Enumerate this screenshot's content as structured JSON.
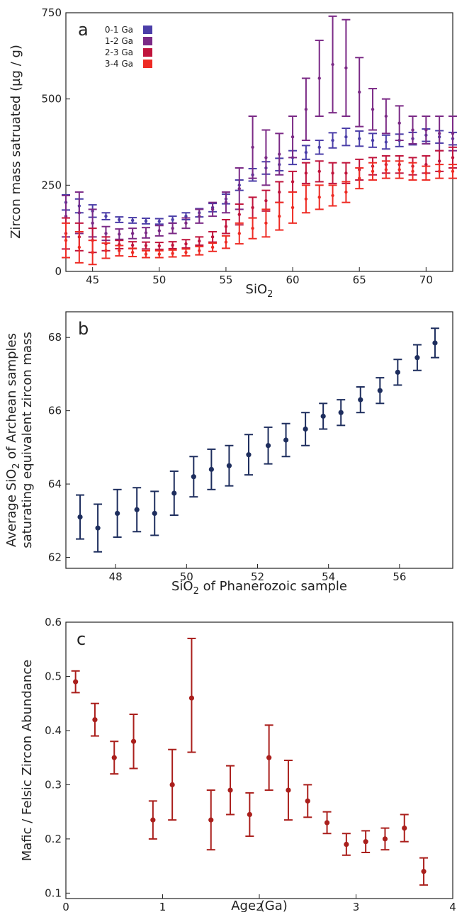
{
  "chart_data": [
    {
      "type": "scatter",
      "panel_label": "a",
      "xlabel": "SiO",
      "xlabel_sub": "2",
      "ylabel": "Zircon mass satruated (µg / g)",
      "xlim": [
        43,
        72
      ],
      "ylim": [
        0,
        750
      ],
      "xticks": [
        "45",
        "50",
        "55",
        "60",
        "65",
        "70"
      ],
      "xtick_values": [
        45,
        50,
        55,
        60,
        65,
        70
      ],
      "yticks": [
        "0",
        "250",
        "500",
        "750"
      ],
      "ytick_values": [
        0,
        250,
        500,
        750
      ],
      "legend_position": "top-left",
      "series": [
        {
          "name": "0-1 Ga",
          "color": "#4b3ea8",
          "x": [
            43,
            44,
            45,
            46,
            47,
            48,
            49,
            50,
            51,
            52,
            53,
            54,
            55,
            56,
            57,
            58,
            59,
            60,
            61,
            62,
            63,
            64,
            65,
            66,
            67,
            68,
            69,
            70,
            71,
            72
          ],
          "y": [
            200,
            190,
            175,
            160,
            150,
            148,
            146,
            145,
            150,
            160,
            170,
            185,
            210,
            250,
            280,
            300,
            310,
            330,
            345,
            360,
            380,
            390,
            385,
            380,
            375,
            380,
            385,
            395,
            390,
            385
          ],
          "err": [
            22,
            20,
            18,
            10,
            8,
            8,
            8,
            8,
            10,
            10,
            12,
            12,
            14,
            15,
            18,
            18,
            18,
            20,
            20,
            20,
            22,
            25,
            22,
            20,
            20,
            18,
            18,
            18,
            18,
            18
          ]
        },
        {
          "name": "1-2 Ga",
          "color": "#7b2a86",
          "x": [
            43,
            44,
            45,
            46,
            47,
            48,
            49,
            50,
            51,
            52,
            53,
            54,
            55,
            56,
            57,
            58,
            59,
            60,
            61,
            62,
            63,
            64,
            65,
            66,
            67,
            68,
            69,
            70,
            71,
            72
          ],
          "y": [
            160,
            170,
            140,
            110,
            108,
            110,
            112,
            118,
            125,
            140,
            160,
            180,
            200,
            240,
            360,
            330,
            340,
            390,
            470,
            560,
            600,
            590,
            520,
            470,
            450,
            430,
            410,
            410,
            400,
            400
          ],
          "err": [
            60,
            60,
            40,
            20,
            15,
            15,
            15,
            15,
            15,
            15,
            20,
            20,
            30,
            60,
            90,
            80,
            60,
            60,
            90,
            110,
            140,
            140,
            100,
            60,
            50,
            50,
            40,
            40,
            50,
            50
          ]
        },
        {
          "name": "2-3 Ga",
          "color": "#c0143c",
          "x": [
            43,
            44,
            45,
            46,
            47,
            48,
            49,
            50,
            51,
            52,
            53,
            54,
            55,
            56,
            57,
            58,
            59,
            60,
            61,
            62,
            63,
            64,
            65,
            66,
            67,
            68,
            69,
            70,
            71,
            72
          ],
          "y": [
            110,
            100,
            90,
            80,
            78,
            76,
            75,
            74,
            76,
            80,
            88,
            100,
            130,
            165,
            185,
            205,
            230,
            260,
            285,
            290,
            285,
            285,
            295,
            305,
            310,
            310,
            305,
            310,
            320,
            330
          ],
          "err": [
            45,
            40,
            35,
            20,
            12,
            10,
            10,
            10,
            10,
            12,
            12,
            15,
            20,
            30,
            30,
            30,
            30,
            30,
            30,
            30,
            30,
            30,
            30,
            25,
            25,
            25,
            25,
            25,
            30,
            30
          ]
        },
        {
          "name": "3-4 Ga",
          "color": "#ee2b24",
          "x": [
            43,
            44,
            45,
            46,
            47,
            48,
            49,
            50,
            51,
            52,
            53,
            54,
            55,
            56,
            57,
            58,
            59,
            60,
            61,
            62,
            63,
            64,
            65,
            66,
            67,
            68,
            69,
            70,
            71,
            72
          ],
          "y": [
            90,
            70,
            55,
            60,
            60,
            55,
            50,
            50,
            52,
            55,
            60,
            70,
            85,
            110,
            125,
            140,
            160,
            185,
            210,
            215,
            220,
            230,
            270,
            290,
            295,
            295,
            290,
            285,
            290,
            290
          ],
          "err": [
            50,
            45,
            35,
            22,
            15,
            12,
            10,
            10,
            10,
            10,
            12,
            12,
            18,
            30,
            30,
            40,
            40,
            45,
            40,
            35,
            30,
            30,
            30,
            25,
            25,
            25,
            25,
            20,
            20,
            20
          ]
        }
      ]
    },
    {
      "type": "scatter",
      "panel_label": "b",
      "xlabel": "SiO",
      "xlabel_sub": "2",
      "xlabel_rest": " of Phanerozoic sample",
      "ylabel_line1": "Average SiO",
      "ylabel_sub": "2",
      "ylabel_line1_rest": " of Archean samples",
      "ylabel_line2": "saturating equivalent zircon mass",
      "xlim": [
        46.6,
        57.5
      ],
      "ylim": [
        61.7,
        68.7
      ],
      "xticks": [
        "48",
        "50",
        "52",
        "54",
        "56"
      ],
      "xtick_values": [
        48,
        50,
        52,
        54,
        56
      ],
      "yticks": [
        "62",
        "64",
        "66",
        "68"
      ],
      "ytick_values": [
        62,
        64,
        66,
        68
      ],
      "series": [
        {
          "color": "#1e2e5e",
          "x": [
            47.0,
            47.5,
            48.05,
            48.6,
            49.1,
            49.65,
            50.2,
            50.7,
            51.2,
            51.75,
            52.3,
            52.8,
            53.35,
            53.85,
            54.35,
            54.9,
            55.45,
            55.95,
            56.5,
            57.0
          ],
          "y": [
            63.1,
            62.8,
            63.2,
            63.3,
            63.2,
            63.75,
            64.2,
            64.4,
            64.5,
            64.8,
            65.05,
            65.2,
            65.5,
            65.85,
            65.95,
            66.3,
            66.55,
            67.05,
            67.45,
            67.85
          ],
          "err": [
            0.6,
            0.65,
            0.65,
            0.6,
            0.6,
            0.6,
            0.55,
            0.55,
            0.55,
            0.55,
            0.5,
            0.45,
            0.45,
            0.35,
            0.35,
            0.35,
            0.35,
            0.35,
            0.35,
            0.4
          ]
        }
      ]
    },
    {
      "type": "scatter",
      "panel_label": "c",
      "xlabel": "Age (Ga)",
      "ylabel": "Mafic / Felsic Zircon Abundance",
      "xlim": [
        0,
        4
      ],
      "ylim": [
        0.09,
        0.6
      ],
      "xticks": [
        "0",
        "1",
        "2",
        "3",
        "4"
      ],
      "xtick_values": [
        0,
        1,
        2,
        3,
        4
      ],
      "yticks": [
        "0.1",
        "0.2",
        "0.3",
        "0.4",
        "0.5",
        "0.6"
      ],
      "ytick_values": [
        0.1,
        0.2,
        0.3,
        0.4,
        0.5,
        0.6
      ],
      "series": [
        {
          "color": "#aa1f1c",
          "x": [
            0.1,
            0.3,
            0.5,
            0.7,
            0.9,
            1.1,
            1.3,
            1.5,
            1.7,
            1.9,
            2.1,
            2.3,
            2.5,
            2.7,
            2.9,
            3.1,
            3.3,
            3.5,
            3.7
          ],
          "y": [
            0.49,
            0.42,
            0.35,
            0.38,
            0.235,
            0.3,
            0.46,
            0.235,
            0.29,
            0.245,
            0.35,
            0.29,
            0.27,
            0.23,
            0.19,
            0.195,
            0.2,
            0.22,
            0.14
          ],
          "err_low": [
            0.02,
            0.03,
            0.03,
            0.05,
            0.035,
            0.065,
            0.1,
            0.055,
            0.045,
            0.04,
            0.06,
            0.055,
            0.03,
            0.02,
            0.02,
            0.02,
            0.02,
            0.025,
            0.025
          ],
          "err_high": [
            0.02,
            0.03,
            0.03,
            0.05,
            0.035,
            0.065,
            0.11,
            0.055,
            0.045,
            0.04,
            0.06,
            0.055,
            0.03,
            0.02,
            0.02,
            0.02,
            0.02,
            0.025,
            0.025
          ]
        }
      ]
    }
  ]
}
